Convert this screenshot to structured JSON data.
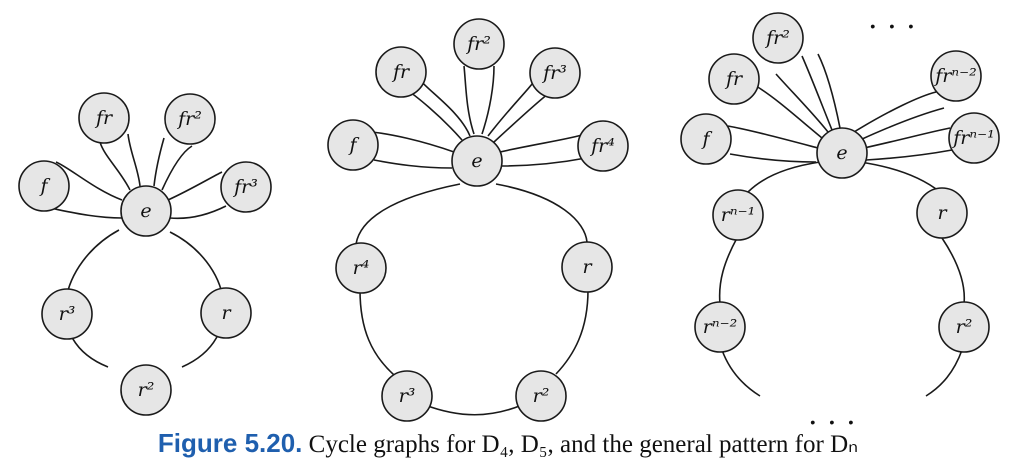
{
  "diagrams": [
    {
      "id": "d4",
      "center": {
        "label": "e"
      },
      "petals": [
        "f",
        "fr",
        "fr²",
        "fr³"
      ],
      "cycle": [
        "r",
        "r²",
        "r³"
      ]
    },
    {
      "id": "d5",
      "center": {
        "label": "e"
      },
      "petals": [
        "f",
        "fr",
        "fr²",
        "fr³",
        "fr⁴"
      ],
      "cycle": [
        "r",
        "r²",
        "r³",
        "r⁴"
      ]
    },
    {
      "id": "dn",
      "center": {
        "label": "e"
      },
      "petals": [
        "f",
        "fr",
        "fr²",
        "frⁿ⁻²",
        "frⁿ⁻¹"
      ],
      "cycle": [
        "r",
        "r²",
        "rⁿ⁻²",
        "rⁿ⁻¹"
      ],
      "ellipsis": ". . ."
    }
  ],
  "caption": {
    "number": "Figure 5.20.",
    "text": "Cycle graphs for D₄, D₅, and the general pattern for Dₙ"
  }
}
